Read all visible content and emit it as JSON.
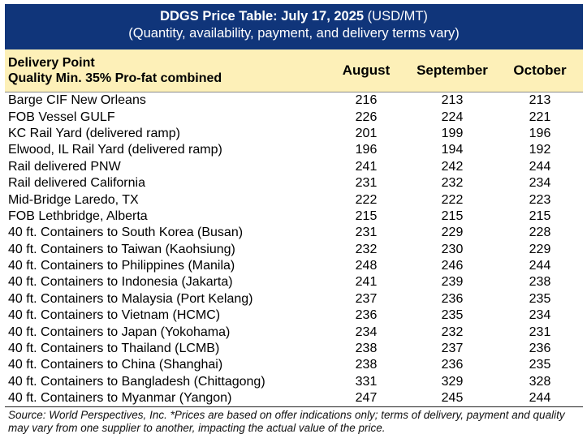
{
  "title": {
    "bold": "DDGS Price Table: July 17, 2025",
    "unit": " (USD/MT)",
    "subtitle": "(Quantity, availability, payment, and delivery terms vary)"
  },
  "header": {
    "col1_line1": "Delivery Point",
    "col1_line2": "Quality Min. 35% Pro-fat combined",
    "months": [
      "August",
      "September",
      "October"
    ]
  },
  "rows": [
    {
      "point": "Barge CIF New Orleans",
      "v": [
        "216",
        "213",
        "213"
      ]
    },
    {
      "point": "FOB Vessel GULF",
      "v": [
        "226",
        "224",
        "221"
      ]
    },
    {
      "point": "KC Rail Yard (delivered ramp)",
      "v": [
        "201",
        "199",
        "196"
      ]
    },
    {
      "point": "Elwood, IL Rail Yard (delivered ramp)",
      "v": [
        "196",
        "194",
        "192"
      ]
    },
    {
      "point": "Rail delivered PNW",
      "v": [
        "241",
        "242",
        "244"
      ]
    },
    {
      "point": "Rail delivered California",
      "v": [
        "231",
        "232",
        "234"
      ]
    },
    {
      "point": "Mid-Bridge Laredo, TX",
      "v": [
        "222",
        "222",
        "223"
      ]
    },
    {
      "point": "FOB Lethbridge, Alberta",
      "v": [
        "215",
        "215",
        "215"
      ]
    },
    {
      "point": "40 ft. Containers to South Korea (Busan)",
      "v": [
        "231",
        "229",
        "228"
      ]
    },
    {
      "point": "40 ft. Containers to Taiwan (Kaohsiung)",
      "v": [
        "232",
        "230",
        "229"
      ]
    },
    {
      "point": "40 ft. Containers to Philippines (Manila)",
      "v": [
        "248",
        "246",
        "244"
      ]
    },
    {
      "point": "40 ft. Containers to Indonesia (Jakarta)",
      "v": [
        "241",
        "239",
        "238"
      ]
    },
    {
      "point": "40 ft. Containers to Malaysia (Port Kelang)",
      "v": [
        "237",
        "236",
        "235"
      ]
    },
    {
      "point": "40 ft. Containers to Vietnam (HCMC)",
      "v": [
        "236",
        "235",
        "234"
      ]
    },
    {
      "point": "40 ft. Containers to Japan (Yokohama)",
      "v": [
        "234",
        "232",
        "231"
      ]
    },
    {
      "point": "40 ft. Containers to Thailand (LCMB)",
      "v": [
        "238",
        "237",
        "236"
      ]
    },
    {
      "point": "40 ft. Containers to China (Shanghai)",
      "v": [
        "238",
        "236",
        "235"
      ]
    },
    {
      "point": "40 ft. Containers to Bangladesh (Chittagong)",
      "v": [
        "331",
        "329",
        "328"
      ]
    },
    {
      "point": "40 ft. Containers to Myanmar (Yangon)",
      "v": [
        "247",
        "245",
        "244"
      ]
    }
  ],
  "source": "Source: World Perspectives, Inc. *Prices are based on offer indications only; terms of delivery, payment and quality may vary from one supplier to another, impacting the actual value of the price.",
  "colors": {
    "title_bg": "#10357a",
    "header_bg": "#fdf0b8"
  }
}
